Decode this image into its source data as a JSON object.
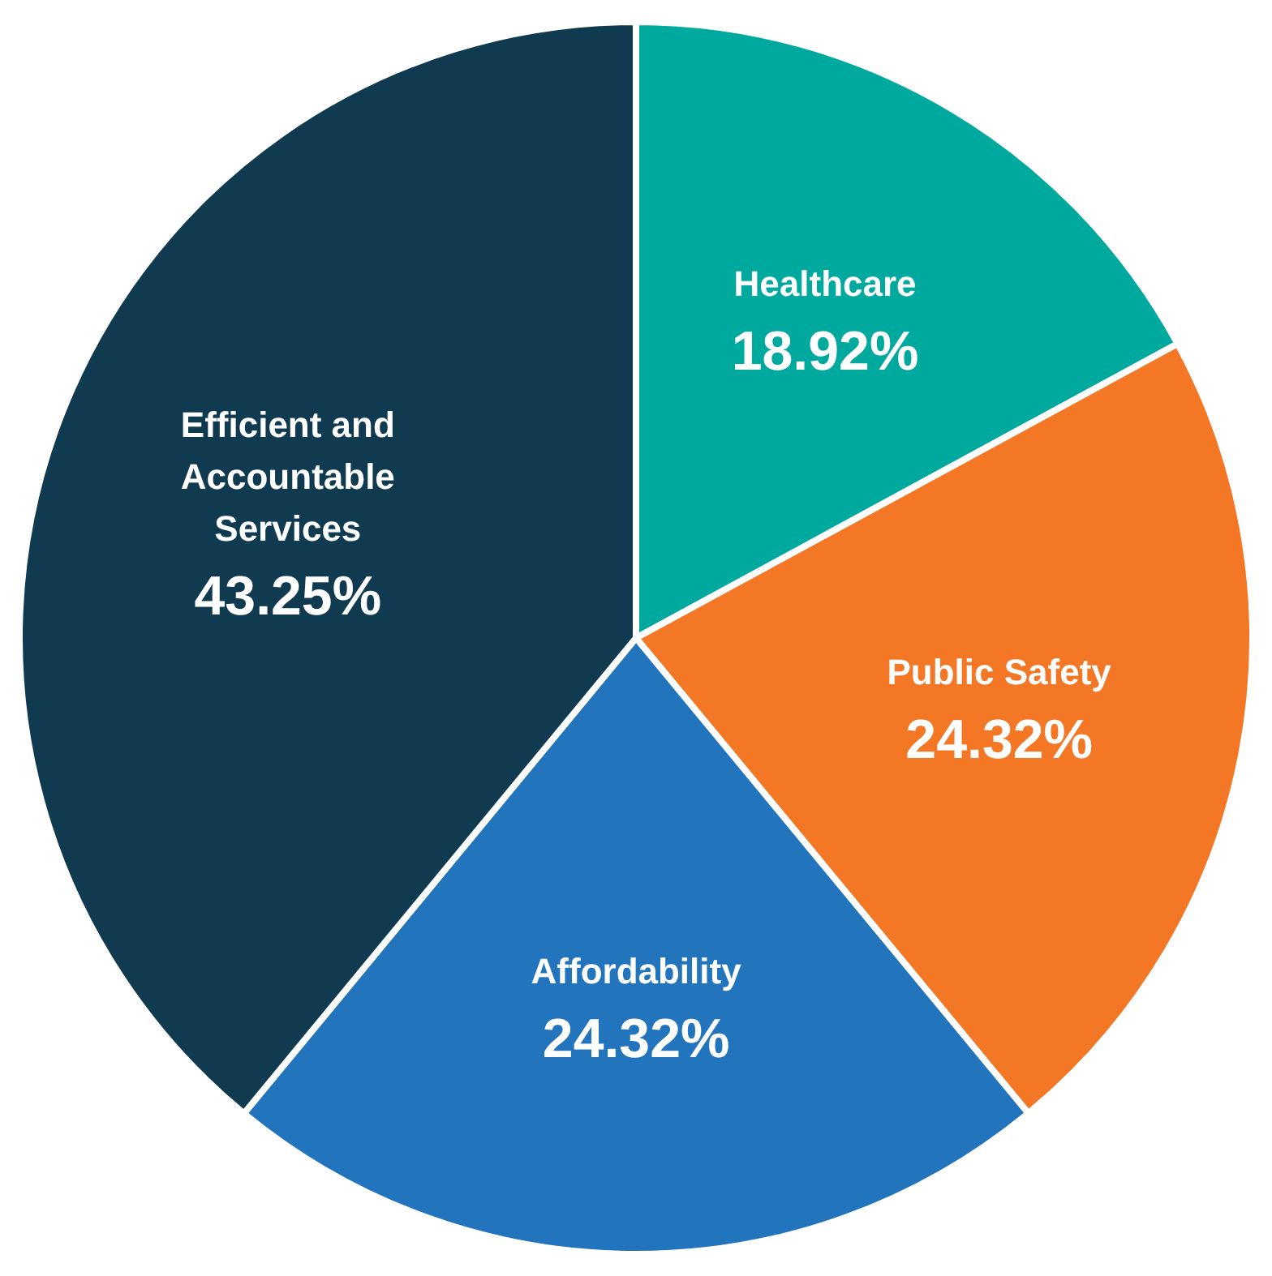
{
  "chart_data": {
    "type": "pie",
    "categories": [
      "Healthcare",
      "Public Safety",
      "Affordability",
      "Efficient and Accountable Services"
    ],
    "values": [
      18.92,
      24.32,
      24.32,
      43.25
    ],
    "value_labels": [
      "18.92%",
      "24.32%",
      "24.32%",
      "43.25%"
    ],
    "colors": [
      "#00a99d",
      "#f37725",
      "#2274bd",
      "#0f3a50"
    ],
    "legend": false
  }
}
